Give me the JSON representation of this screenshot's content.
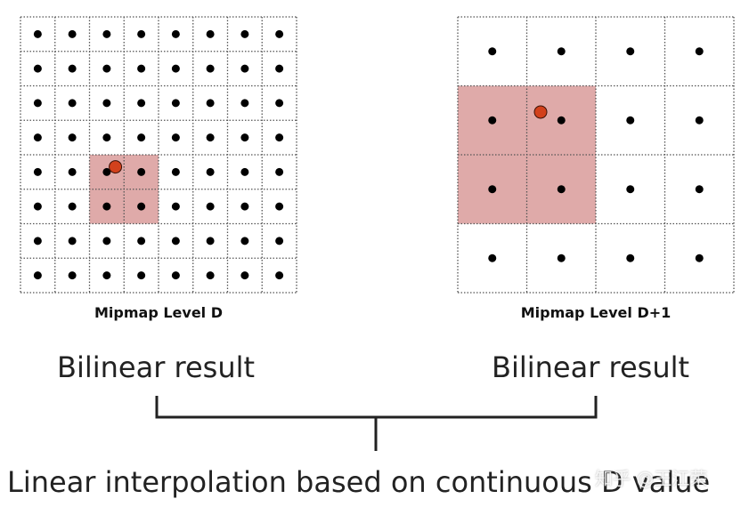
{
  "diagram": {
    "left_grid": {
      "caption": "Mipmap Level D",
      "rows": 8,
      "cols": 8,
      "highlight": {
        "row": 4,
        "col": 2,
        "rows": 2,
        "cols": 2
      },
      "sample_point": {
        "col": 2.75,
        "row": 4.35
      }
    },
    "right_grid": {
      "caption": "Mipmap Level D+1",
      "rows": 4,
      "cols": 4,
      "highlight": {
        "row": 1,
        "col": 0,
        "rows": 2,
        "cols": 2
      },
      "sample_point": {
        "col": 1.2,
        "row": 1.38
      }
    },
    "left_result": "Bilinear result",
    "right_result": "Bilinear result",
    "bottom_label": "Linear interpolation based on continuous D value",
    "watermark": "知乎 @王江荣"
  },
  "colors": {
    "highlight": "#dfaaa9",
    "sample_point": "#d2411c",
    "dot": "#000000",
    "grid_line": "#555555"
  }
}
